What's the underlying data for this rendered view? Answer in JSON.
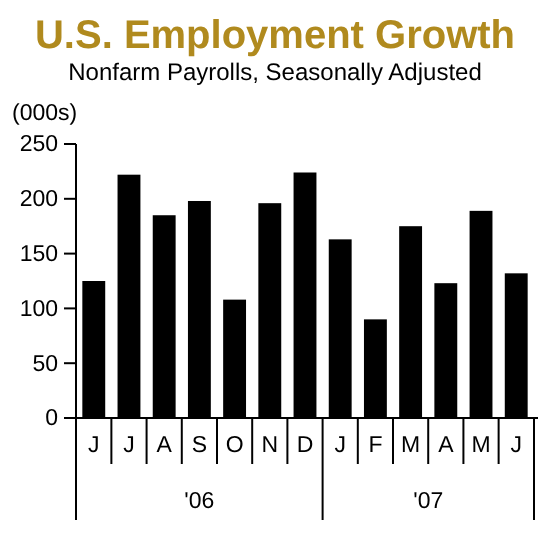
{
  "chart_data": {
    "type": "bar",
    "title": "U.S. Employment Growth",
    "subtitle": "Nonfarm Payrolls, Seasonally Adjusted",
    "ylabel": "(000s)",
    "categories": [
      "J",
      "J",
      "A",
      "S",
      "O",
      "N",
      "D",
      "J",
      "F",
      "M",
      "A",
      "M",
      "J"
    ],
    "values": [
      125,
      222,
      185,
      198,
      108,
      196,
      224,
      163,
      90,
      175,
      123,
      189,
      132
    ],
    "color": "#000000",
    "ylim": [
      0,
      250
    ],
    "yticks": [
      0,
      50,
      100,
      150,
      200,
      250
    ],
    "grid": false,
    "annotations": [
      "'06",
      "'07"
    ]
  }
}
